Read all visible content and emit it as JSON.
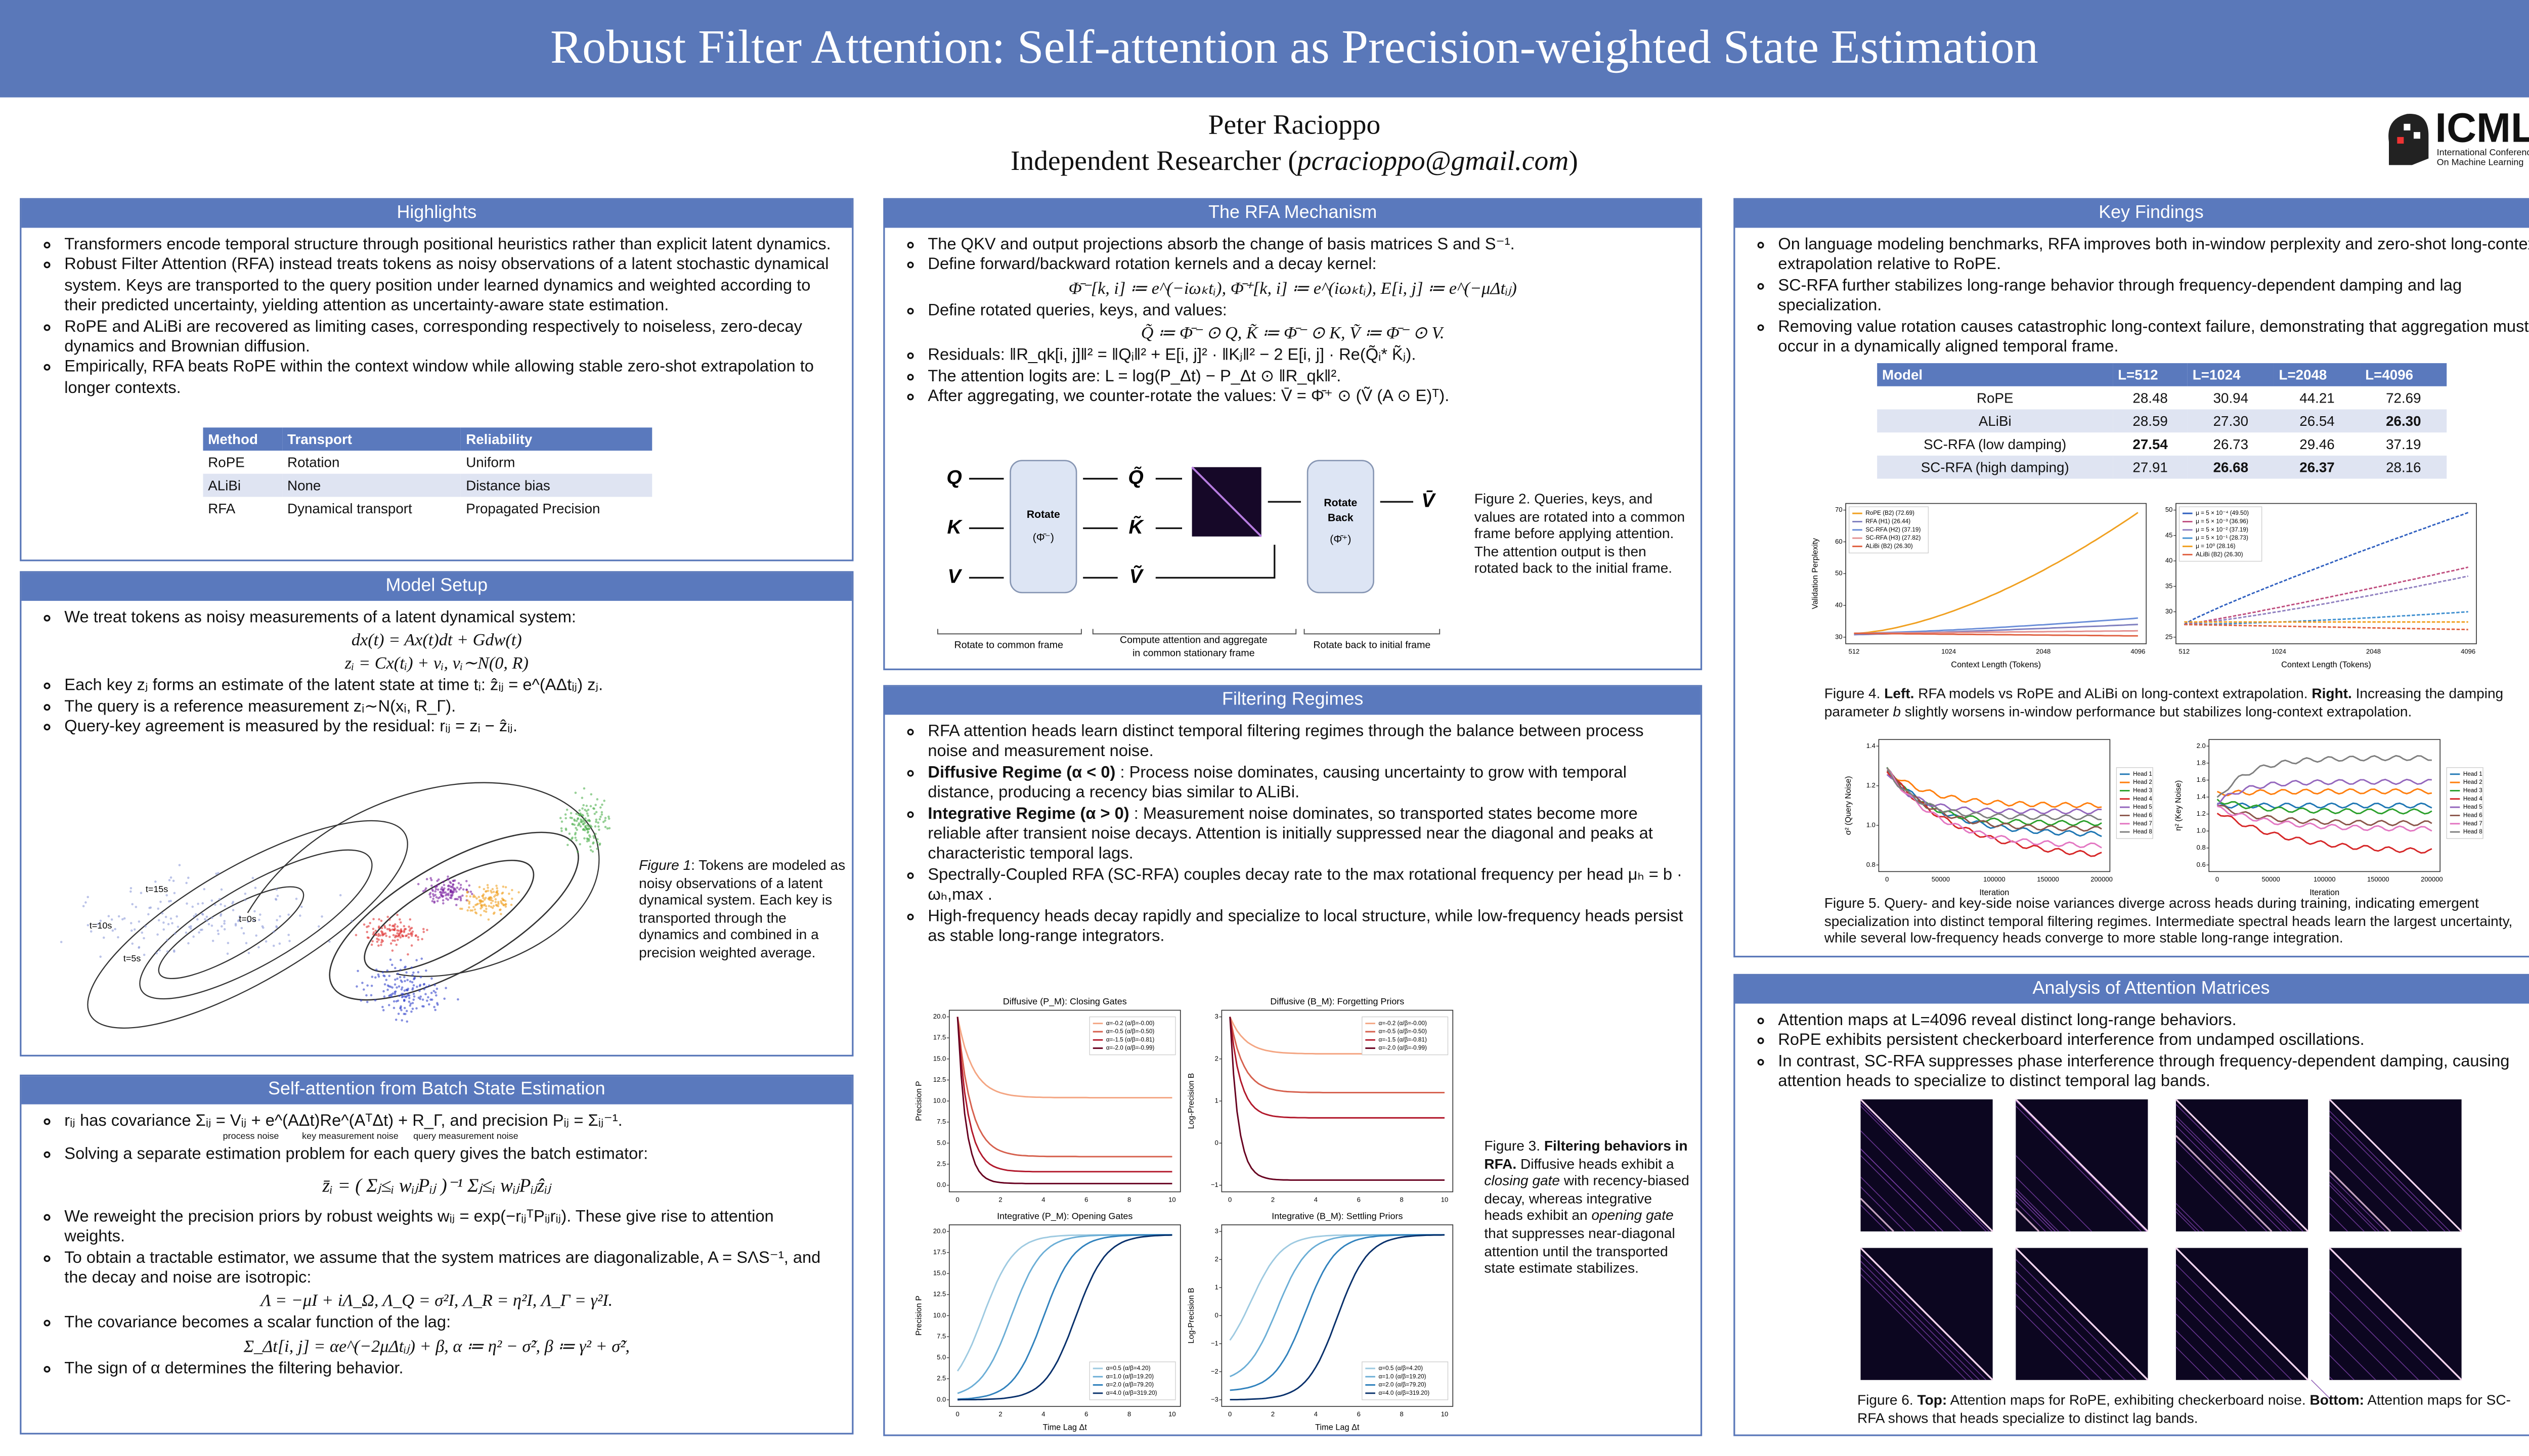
{
  "header": {
    "title": "Robust Filter Attention: Self-attention as Precision-weighted State Estimation",
    "author": "Peter Racioppo",
    "affiliation": "Independent Researcher (",
    "email": "pcracioppo@gmail.com",
    "affiliation_end": ")",
    "logo": "ICML",
    "logo_sub": [
      "International Conference",
      "On Machine Learning"
    ]
  },
  "highlights": {
    "title": "Highlights",
    "bullets": [
      "Transformers encode temporal structure through positional heuristics rather than explicit latent dynamics.",
      "Robust Filter Attention (RFA) instead treats tokens as noisy observations of a latent stochastic dynamical system. Keys are transported to the query position under learned dynamics and weighted according to their predicted uncertainty, yielding attention as uncertainty-aware state estimation.",
      "RoPE and ALiBi are recovered as limiting cases, corresponding respectively to noiseless, zero-decay dynamics and Brownian diffusion.",
      "Empirically, RFA beats RoPE within the context window while allowing stable zero-shot extrapolation to longer contexts."
    ],
    "table": {
      "columns": [
        "Method",
        "Transport",
        "Reliability"
      ],
      "rows": [
        [
          "RoPE",
          "Rotation",
          "Uniform"
        ],
        [
          "ALiBi",
          "None",
          "Distance bias"
        ],
        [
          "RFA",
          "Dynamical transport",
          "Propagated Precision"
        ]
      ]
    }
  },
  "model_setup": {
    "title": "Model Setup",
    "intro": "We treat tokens as noisy measurements of a latent dynamical system:",
    "equations": [
      "dx(t) = Ax(t)dt + Gdw(t)",
      "zᵢ = Cx(tᵢ) + vᵢ,  vᵢ∼N(0, R)"
    ],
    "bullets": [
      "Each key zⱼ forms an estimate of the latent state at time tᵢ: ẑᵢⱼ = e^(AΔtᵢⱼ) zⱼ.",
      "The query is a reference measurement zᵢ∼N(xᵢ, R_Γ).",
      "Query-key agreement is measured by the residual: rᵢⱼ = zᵢ − ẑᵢⱼ."
    ],
    "figure": {
      "labels": [
        "t=15s",
        "t=10s",
        "t=5s",
        "t=0s"
      ],
      "caption_lead": "Figure 1",
      "caption": ": Tokens are modeled as noisy observations of a latent dynamical system. Each key is transported through the dynamics and combined in a precision weighted average."
    }
  },
  "batch": {
    "title": "Self-attention from Batch State Estimation",
    "covariance": "rᵢⱼ has covariance Σᵢⱼ = Vᵢⱼ + e^(AΔt)Re^(AᵀΔt) + R_Γ, and precision Pᵢⱼ = Σᵢⱼ⁻¹.",
    "braces": [
      "process noise",
      "key measurement noise",
      "query measurement noise"
    ],
    "solve": "Solving a separate estimation problem for each query gives the batch estimator:",
    "estimator": "z̄ᵢ = ( Σⱼ≤ᵢ wᵢⱼPᵢⱼ )⁻¹ Σⱼ≤ᵢ wᵢⱼPᵢⱼẑᵢⱼ",
    "reweight": "We reweight the precision priors by robust weights wᵢⱼ = exp(−rᵢⱼᵀPᵢⱼrᵢⱼ). These give rise to attention weights.",
    "tractable": "To obtain a tractable estimator, we assume that the system matrices are diagonalizable, A = SΛS⁻¹, and the decay and noise are isotropic:",
    "isotropic": "Λ = −μI + iΛ_Ω,  Λ_Q = σ²I,  Λ_R = η²I,  Λ_Γ = γ²I.",
    "lag": "The covariance becomes a scalar function of the lag:",
    "lag_eq": "Σ_Δt[i, j] = αe^(−2μΔtᵢⱼ) + β,    α ≔ η² − σ̃²,    β ≔ γ² + σ̃²,",
    "sign": "The sign of α determines the filtering behavior."
  },
  "mechanism": {
    "title": "The RFA Mechanism",
    "items": [
      "The QKV and output projections absorb the change of basis matrices S and S⁻¹.",
      "Define forward/backward rotation kernels and a decay kernel:",
      "Define rotated queries, keys, and values:",
      "Residuals: ‖R_qk[i, j]‖² = ‖Qᵢ‖² + E[i, j]² · ‖Kⱼ‖² − 2 E[i, j] · Re(Q̃ᵢ* K̃ⱼ).",
      "The attention logits are: L = log(P_Δt) − P_Δt ⊙ ‖R_qk‖².",
      "After aggregating, we counter-rotate the values: V̄ = Φ̄⁺ ⊙ (Ṽ (A ⊙ E)ᵀ)."
    ],
    "equations": [
      "Φ̄⁻[k, i] ≔ e^(−iωₖtᵢ),  Φ̄⁺[k, i] ≔ e^(iωₖtᵢ),  E[i, j] ≔ e^(−μΔtᵢⱼ)",
      "Q̃ ≔ Φ̄⁻ ⊙ Q,    K̃ ≔ Φ̄⁻ ⊙ K,    Ṽ ≔ Φ̄⁻ ⊙ V."
    ],
    "figure": {
      "inputs": [
        "Q",
        "K",
        "V"
      ],
      "rotate": "Rotate",
      "rotate_sym": "(Φ̄⁻)",
      "rotated": [
        "Q̃",
        "K̃",
        "Ṽ"
      ],
      "rotate_back": [
        "Rotate",
        "Back"
      ],
      "rotate_back_sym": "(Φ̄⁺)",
      "output": "V̄",
      "steps": [
        "Rotate to common frame",
        "Compute attention and aggregate",
        "in common stationary frame",
        "Rotate back to initial frame"
      ],
      "caption": "Figure 2. Queries, keys, and values are rotated into a common frame before applying attention. The attention output is then rotated back to the initial frame."
    }
  },
  "regimes": {
    "title": "Filtering Regimes",
    "bullets": [
      "RFA attention heads learn distinct temporal filtering regimes through the balance between process noise and measurement noise.",
      {
        "lead": "Diffusive Regime (α < 0)",
        "text": " : Process noise dominates, causing uncertainty to grow with temporal distance, producing a recency bias similar to ALiBi."
      },
      {
        "lead": "Integrative Regime (α > 0)",
        "text": " : Measurement noise dominates, so transported states become more reliable after transient noise decays. Attention is initially suppressed near the diagonal and peaks at characteristic temporal lags."
      },
      "Spectrally-Coupled RFA (SC-RFA) couples decay rate to the max rotational frequency per head μₕ = b · ωₕ,max .",
      "High-frequency heads decay rapidly and specialize to local structure, while low-frequency heads persist as stable long-range integrators."
    ],
    "plots": [
      {
        "title": "Diffusive (P_M): Closing Gates",
        "ylabel": "Precision P",
        "yticks": [
          "0.0",
          "2.5",
          "5.0",
          "7.5",
          "10.0",
          "12.5",
          "15.0",
          "17.5",
          "20.0"
        ],
        "legend": [
          "α=-0.2 (α/β=-0.00)",
          "α=-0.5 (α/β=-0.50)",
          "α=-1.5 (α/β=-0.81)",
          "α=-2.0 (α/β=-0.99)"
        ],
        "colors": [
          "#f4a582",
          "#d6604d",
          "#b2182b",
          "#67001f"
        ]
      },
      {
        "title": "Diffusive (B_M): Forgetting Priors",
        "ylabel": "Log-Precision B",
        "yticks": [
          "−1",
          "0",
          "1",
          "2",
          "3"
        ],
        "legend": [
          "α=-0.2 (α/β=-0.00)",
          "α=-0.5 (α/β=-0.50)",
          "α=-1.5 (α/β=-0.81)",
          "α=-2.0 (α/β=-0.99)"
        ],
        "colors": [
          "#f4a582",
          "#d6604d",
          "#b2182b",
          "#67001f"
        ]
      },
      {
        "title": "Integrative (P_M): Opening Gates",
        "ylabel": "Precision P",
        "xlabel": "Time Lag Δt",
        "yticks": [
          "0.0",
          "2.5",
          "5.0",
          "7.5",
          "10.0",
          "12.5",
          "15.0",
          "17.5",
          "20.0"
        ],
        "legend": [
          "α=0.5 (α/β=4.20)",
          "α=1.0 (α/β=19.20)",
          "α=2.0 (α/β=79.20)",
          "α=4.0 (α/β=319.20)"
        ],
        "colors": [
          "#9ecae1",
          "#6baed6",
          "#3182bd",
          "#08306b"
        ]
      },
      {
        "title": "Integrative (B_M): Settling Priors",
        "ylabel": "Log-Precision B",
        "xlabel": "Time Lag Δt",
        "yticks": [
          "−3",
          "−2",
          "−1",
          "0",
          "1",
          "2",
          "3"
        ],
        "legend": [
          "α=0.5 (α/β=4.20)",
          "α=1.0 (α/β=19.20)",
          "α=2.0 (α/β=79.20)",
          "α=4.0 (α/β=319.20)"
        ],
        "colors": [
          "#9ecae1",
          "#6baed6",
          "#3182bd",
          "#08306b"
        ]
      }
    ],
    "xticks": [
      "0",
      "2",
      "4",
      "6",
      "8",
      "10"
    ],
    "caption": {
      "lead": "Figure 3. ",
      "bold": "Filtering behaviors in RFA.",
      "t1": " Diffusive heads exhibit a ",
      "i1": "closing gate",
      "t2": " with recency-biased decay, whereas integrative heads exhibit an ",
      "i2": "opening gate",
      "t3": " that suppresses near-diagonal attention until the transported state estimate stabilizes."
    }
  },
  "findings": {
    "title": "Key Findings",
    "bullets": [
      "On language modeling benchmarks, RFA improves both in-window perplexity and zero-shot long-context extrapolation relative to RoPE.",
      "SC-RFA further stabilizes long-range behavior through frequency-dependent damping and lag specialization.",
      "Removing value rotation causes catastrophic long-context failure, demonstrating that aggregation must occur in a dynamically aligned temporal frame."
    ],
    "table": {
      "columns": [
        "Model",
        "L=512",
        "L=1024",
        "L=2048",
        "L=4096"
      ],
      "rows": [
        [
          "RoPE",
          "28.48",
          "30.94",
          "44.21",
          "72.69"
        ],
        [
          "ALiBi",
          "28.59",
          "27.30",
          "26.54",
          "26.30"
        ],
        [
          "SC-RFA (low damping)",
          "27.54",
          "26.73",
          "29.46",
          "37.19"
        ],
        [
          "SC-RFA (high damping)",
          "27.91",
          "26.68",
          "26.37",
          "28.16"
        ]
      ],
      "bold": [
        [
          1,
          4
        ],
        [
          2,
          1
        ],
        [
          3,
          2
        ],
        [
          3,
          3
        ]
      ]
    },
    "fig4": {
      "xlabel": "Context Length (Tokens)",
      "ylabel": "Validation Perplexity",
      "xticks": [
        "512",
        "1024",
        "2048",
        "4096"
      ],
      "left_yticks": [
        "30",
        "40",
        "50",
        "60",
        "70"
      ],
      "right_yticks": [
        "25",
        "30",
        "35",
        "40",
        "45",
        "50"
      ],
      "left_legend": [
        "RoPE (B2) (72.69)",
        "RFA (H1) (26.44)",
        "SC-RFA (H2) (37.19)",
        "SC-RFA (H3) (27.82)",
        "ALiBi (B2) (26.30)"
      ],
      "right_legend": [
        "μ = 5 × 10⁻⁴ (49.50)",
        "μ = 5 × 10⁻³ (36.96)",
        "μ = 5 × 10⁻² (37.19)",
        "μ = 5 × 10⁻¹ (28.73)",
        "μ = 10⁰ (28.16)",
        "ALiBi (B2) (26.30)"
      ],
      "caption": {
        "lead": "Figure 4. ",
        "b1": "Left.",
        "t1": " RFA models vs RoPE and ALiBi on long-context extrapolation. ",
        "b2": "Right.",
        "t2": " Increasing the damping parameter ",
        "i1": "b",
        "t3": " slightly worsens in-window performance but stabilizes long-context extrapolation."
      }
    },
    "fig5": {
      "xlabel": "Iteration",
      "left_ylabel": "σ² (Query Noise)",
      "right_ylabel": "η² (Key Noise)",
      "xticks": [
        "0",
        "50000",
        "100000",
        "150000",
        "200000"
      ],
      "left_yticks": [
        "0.8",
        "1.0",
        "1.2",
        "1.4"
      ],
      "right_yticks": [
        "0.6",
        "0.8",
        "1.0",
        "1.2",
        "1.4",
        "1.6",
        "1.8",
        "2.0"
      ],
      "legend": [
        "Head 1",
        "Head 2",
        "Head 3",
        "Head 4",
        "Head 5",
        "Head 6",
        "Head 7",
        "Head 8"
      ],
      "colors": [
        "#1f77b4",
        "#ff7f0e",
        "#2ca02c",
        "#d62728",
        "#9467bd",
        "#8c564b",
        "#e377c2",
        "#7f7f7f"
      ],
      "caption": "Figure 5. Query- and key-side noise variances diverge across heads during training, indicating emergent specialization into distinct temporal filtering regimes. Intermediate spectral heads learn the largest uncertainty, while several low-frequency heads converge to more stable long-range integration."
    }
  },
  "analysis": {
    "title": "Analysis of Attention Matrices",
    "bullets": [
      "Attention maps at L=4096 reveal distinct long-range behaviors.",
      "RoPE exhibits persistent checkerboard interference from undamped oscillations.",
      "In contrast, SC-RFA suppresses phase interference through frequency-dependent damping, causing attention heads to specialize to distinct temporal lag bands."
    ],
    "caption": {
      "lead": "Figure 6. ",
      "b1": "Top:",
      "t1": " Attention maps for RoPE, exhibiting checkerboard noise. ",
      "b2": "Bottom:",
      "t2": " Attention maps for SC-RFA shows that heads specialize to distinct lag bands."
    }
  }
}
